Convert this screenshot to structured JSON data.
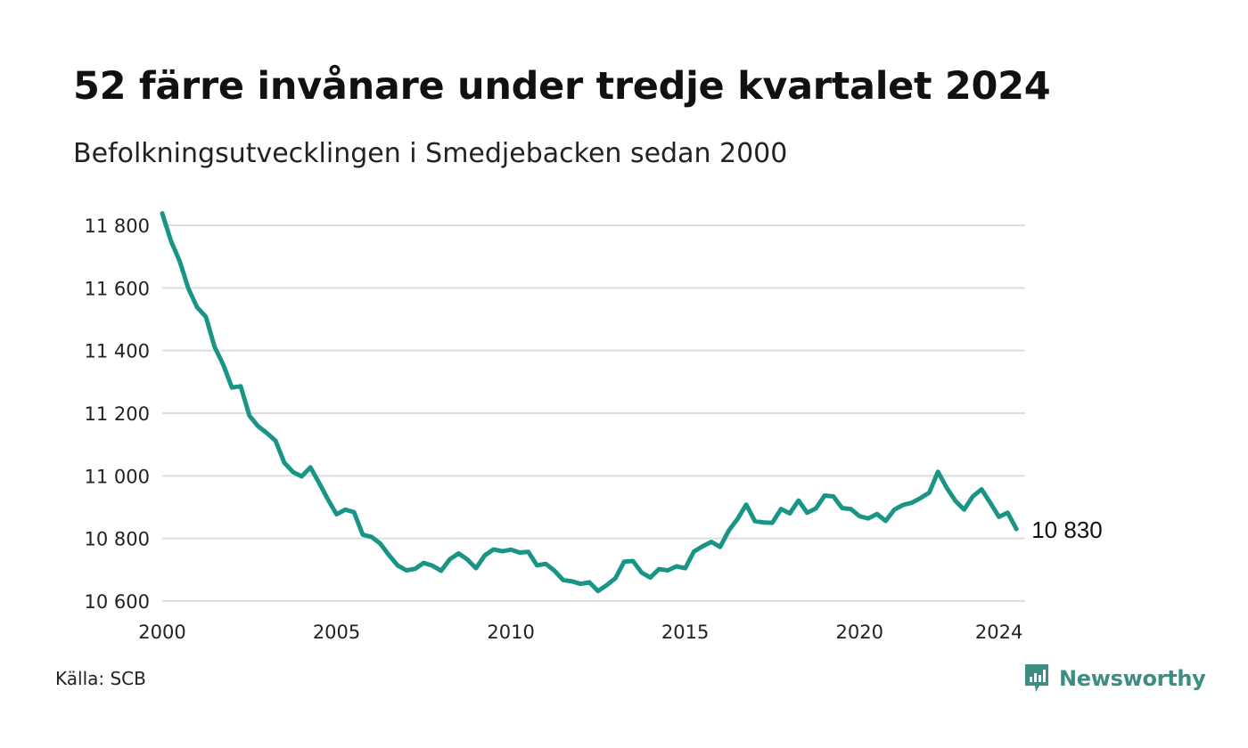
{
  "header": {
    "title": "52 färre invånare under tredje kvartalet 2024",
    "subtitle": "Befolkningsutvecklingen i Smedjebacken sedan 2000"
  },
  "footer": {
    "source": "Källa: SCB",
    "brand": "Newsworthy",
    "brand_icon": "newsworthy-logo-icon"
  },
  "colors": {
    "line": "#1a9585",
    "grid": "#dddddd",
    "brand": "#3a8f82"
  },
  "chart_data": {
    "type": "line",
    "title": "52 färre invånare under tredje kvartalet 2024",
    "subtitle": "Befolkningsutvecklingen i Smedjebacken sedan 2000",
    "xlabel": "",
    "ylabel": "",
    "xlim": [
      2000,
      2024.75
    ],
    "ylim": [
      10600,
      11850
    ],
    "x_ticks": [
      2000,
      2005,
      2010,
      2015,
      2020,
      2024
    ],
    "y_ticks": [
      10600,
      10800,
      11000,
      11200,
      11400,
      11600,
      11800
    ],
    "y_tick_labels": [
      "10 600",
      "10 800",
      "11 000",
      "11 200",
      "11 400",
      "11 600",
      "11 800"
    ],
    "grid": "horizontal",
    "end_label": "10 830",
    "series": [
      {
        "name": "",
        "start": "2000-Q1",
        "frequency": "quarterly",
        "values": [
          11838,
          11750,
          11685,
          11598,
          11538,
          11508,
          11412,
          11355,
          11282,
          11286,
          11192,
          11158,
          11137,
          11112,
          11042,
          11012,
          10998,
          11027,
          10977,
          10925,
          10877,
          10892,
          10884,
          10812,
          10805,
          10784,
          10747,
          10714,
          10698,
          10703,
          10722,
          10713,
          10697,
          10734,
          10752,
          10733,
          10705,
          10746,
          10765,
          10759,
          10764,
          10755,
          10757,
          10714,
          10719,
          10697,
          10667,
          10663,
          10655,
          10660,
          10632,
          10651,
          10673,
          10726,
          10728,
          10691,
          10675,
          10702,
          10698,
          10711,
          10705,
          10758,
          10775,
          10789,
          10773,
          10825,
          10862,
          10908,
          10855,
          10851,
          10850,
          10894,
          10880,
          10921,
          10882,
          10896,
          10937,
          10934,
          10897,
          10894,
          10871,
          10864,
          10878,
          10856,
          10892,
          10907,
          10914,
          10929,
          10946,
          11013,
          10962,
          10920,
          10892,
          10934,
          10957,
          10914,
          10869,
          10882,
          10830
        ]
      }
    ]
  }
}
